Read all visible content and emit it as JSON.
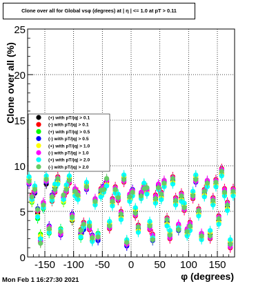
{
  "chart_data": {
    "type": "scatter",
    "title": "Clone  over all for Global vsφ (degrees) at | η | <= 1.0 at pT > 0.11",
    "xlabel": "φ (degrees)",
    "ylabel": "Clone  over all (%)",
    "xlim": [
      -180,
      180
    ],
    "ylim": [
      0,
      25
    ],
    "x_ticks": [
      "-150",
      "-100",
      "-50",
      "0",
      "50",
      "100",
      "150"
    ],
    "y_ticks": [
      "0",
      "5",
      "10",
      "15",
      "20",
      "25"
    ],
    "grid": true,
    "legend_position": "left",
    "timestamp": "Mon Feb  1 16:27:30 2021",
    "series": [
      {
        "name": "(+) with pT/|q| > 0.1",
        "color": "#000000",
        "marker": "circle",
        "values": [
          8.5,
          6.2,
          7.0,
          4.8,
          2.1,
          5.5,
          8.0,
          3.0,
          6.5,
          7.6,
          8.3,
          2.6,
          6.2,
          7.5,
          8.6,
          4.0,
          7.1,
          6.7,
          2.5,
          3.2,
          7.8,
          3.5,
          1.8,
          6.0,
          2.0,
          7.0,
          7.5,
          8.2,
          3.5,
          6.0,
          7.3,
          6.6,
          4.5,
          8.7,
          1.5,
          6.5,
          7.0,
          5.0,
          3.0,
          6.8,
          7.8,
          7.2,
          3.5,
          2.0,
          6.3,
          7.7,
          6.6,
          8.0,
          3.8,
          2.5,
          8.3,
          6.0,
          3.1,
          6.5,
          5.5,
          2.7,
          3.3,
          6.8,
          8.6,
          4.8,
          2.2,
          6.9,
          8.0,
          2.5,
          6.0,
          8.0,
          4.0,
          9.2,
          7.0,
          5.5,
          1.5,
          7.0
        ]
      },
      {
        "name": "(-) with pT/|q| > 0.1",
        "color": "#ff0000",
        "marker": "circle",
        "values": [
          8.2,
          6.8,
          7.3,
          5.0,
          1.6,
          5.9,
          8.4,
          3.2,
          6.1,
          7.1,
          8.8,
          2.7,
          6.7,
          7.1,
          8.1,
          4.5,
          7.4,
          7.1,
          3.0,
          3.8,
          7.6,
          3.0,
          2.2,
          6.3,
          2.3,
          7.5,
          7.6,
          8.3,
          3.1,
          6.4,
          7.7,
          6.2,
          5.0,
          8.2,
          1.3,
          6.8,
          7.2,
          4.5,
          3.5,
          6.9,
          7.9,
          7.3,
          3.0,
          2.5,
          6.8,
          7.8,
          7.1,
          8.3,
          4.3,
          2.0,
          8.8,
          6.5,
          3.5,
          7.0,
          5.1,
          3.0,
          3.8,
          6.4,
          8.4,
          5.3,
          2.5,
          7.4,
          8.2,
          2.0,
          6.5,
          8.5,
          4.5,
          9.7,
          7.5,
          6.0,
          1.0,
          7.5
        ]
      },
      {
        "name": "(+) with pT/|q| > 0.5",
        "color": "#00ff00",
        "marker": "circle",
        "values": [
          8.7,
          6.0,
          7.6,
          4.2,
          2.5,
          5.3,
          8.6,
          2.6,
          6.3,
          7.9,
          8.1,
          3.1,
          6.0,
          7.8,
          8.8,
          4.2,
          6.8,
          6.4,
          2.1,
          3.5,
          8.0,
          3.7,
          1.9,
          5.8,
          2.6,
          6.7,
          7.2,
          7.9,
          3.8,
          5.7,
          7.1,
          6.8,
          4.2,
          8.9,
          1.8,
          6.2,
          6.8,
          5.3,
          2.8,
          6.5,
          8.0,
          7.0,
          3.8,
          2.3,
          6.0,
          7.5,
          6.4,
          7.8,
          3.5,
          2.8,
          8.1,
          5.8,
          3.4,
          6.2,
          5.8,
          2.4,
          3.0,
          7.1,
          8.9,
          4.6,
          2.0,
          6.7,
          7.8,
          2.8,
          5.8,
          7.8,
          3.7,
          9.0,
          6.8,
          5.2,
          1.8,
          6.8
        ]
      },
      {
        "name": "(-) with pT/|q| > 0.5",
        "color": "#0000ff",
        "marker": "circle",
        "values": [
          8.0,
          6.5,
          7.1,
          5.3,
          1.8,
          5.8,
          8.2,
          3.4,
          6.8,
          7.3,
          8.5,
          2.4,
          6.5,
          7.3,
          8.3,
          4.7,
          7.3,
          6.9,
          2.7,
          3.0,
          7.4,
          3.3,
          2.4,
          6.2,
          1.8,
          7.2,
          7.8,
          8.5,
          3.3,
          6.2,
          7.5,
          6.4,
          4.8,
          8.4,
          1.2,
          6.7,
          7.4,
          4.7,
          3.2,
          7.0,
          7.6,
          7.5,
          3.3,
          1.8,
          6.5,
          7.9,
          6.8,
          8.2,
          4.0,
          2.3,
          8.5,
          6.3,
          2.9,
          6.8,
          5.3,
          2.9,
          3.5,
          6.6,
          8.2,
          5.0,
          2.4,
          7.1,
          8.3,
          2.2,
          6.3,
          8.3,
          4.3,
          9.5,
          7.2,
          5.8,
          1.3,
          7.3
        ]
      },
      {
        "name": "(+) with pT/|q| > 1.0",
        "color": "#ffff00",
        "marker": "circle",
        "values": [
          8.6,
          6.1,
          7.5,
          4.5,
          2.3,
          5.6,
          8.7,
          2.8,
          6.4,
          7.8,
          8.2,
          2.9,
          6.1,
          7.7,
          8.7,
          4.1,
          6.9,
          6.5,
          2.3,
          3.4,
          7.9,
          3.6,
          2.0,
          5.9,
          2.4,
          6.8,
          7.3,
          8.0,
          3.7,
          5.8,
          7.2,
          6.7,
          4.3,
          8.8,
          1.7,
          6.3,
          6.9,
          5.2,
          2.9,
          6.6,
          7.9,
          7.1,
          3.7,
          2.2,
          6.1,
          7.6,
          6.5,
          7.9,
          3.6,
          2.7,
          8.2,
          5.9,
          3.3,
          6.3,
          5.7,
          2.5,
          3.1,
          7.0,
          8.8,
          4.7,
          2.1,
          6.8,
          7.9,
          2.7,
          5.9,
          7.9,
          3.8,
          9.1,
          6.9,
          5.3,
          1.7,
          6.9
        ]
      },
      {
        "name": "(-) with pT/|q| > 1.0",
        "color": "#ff00ff",
        "marker": "circle",
        "values": [
          8.1,
          6.7,
          7.2,
          5.1,
          1.7,
          6.0,
          8.3,
          3.3,
          6.7,
          7.2,
          8.7,
          2.5,
          6.6,
          7.2,
          8.2,
          4.6,
          7.5,
          7.0,
          2.8,
          3.7,
          7.5,
          3.1,
          2.3,
          6.4,
          2.1,
          7.4,
          7.7,
          8.4,
          3.2,
          6.3,
          7.6,
          6.3,
          4.9,
          8.3,
          1.4,
          6.9,
          7.3,
          4.6,
          3.4,
          7.1,
          7.7,
          7.4,
          3.1,
          2.4,
          6.7,
          8.0,
          7.0,
          8.4,
          4.2,
          2.1,
          8.7,
          6.4,
          3.6,
          6.9,
          5.2,
          3.1,
          3.7,
          6.5,
          8.3,
          5.2,
          2.6,
          7.3,
          8.4,
          2.1,
          6.4,
          8.4,
          4.4,
          9.6,
          7.4,
          5.9,
          1.1,
          7.4
        ]
      },
      {
        "name": "(+) with pT/|q| > 2.0",
        "color": "#00ffff",
        "marker": "circle",
        "values": [
          8.8,
          6.3,
          7.8,
          4.4,
          2.0,
          5.4,
          8.9,
          2.7,
          6.2,
          8.0,
          8.0,
          3.0,
          6.3,
          7.9,
          8.9,
          4.3,
          6.7,
          6.3,
          2.2,
          3.3,
          8.2,
          3.8,
          1.7,
          5.7,
          2.5,
          6.6,
          7.1,
          7.8,
          3.9,
          5.6,
          7.0,
          6.9,
          4.1,
          9.0,
          1.9,
          6.1,
          6.7,
          5.4,
          2.7,
          6.4,
          8.1,
          6.9,
          3.9,
          2.1,
          5.9,
          7.4,
          6.3,
          7.7,
          3.4,
          2.9,
          8.0,
          5.7,
          3.2,
          6.1,
          5.9,
          2.3,
          2.9,
          7.2,
          9.0,
          4.5,
          1.9,
          6.6,
          7.7,
          2.9,
          5.7,
          7.7,
          3.6,
          8.9,
          6.7,
          5.1,
          1.9,
          6.7
        ]
      },
      {
        "name": "(-) with pT/|q| > 2.0",
        "color": "#66cc66",
        "marker": "circle",
        "values": [
          8.3,
          6.6,
          7.4,
          5.2,
          1.5,
          5.7,
          8.5,
          3.1,
          6.6,
          7.4,
          8.6,
          2.8,
          6.8,
          7.4,
          8.4,
          4.4,
          7.2,
          6.8,
          2.9,
          3.6,
          7.7,
          3.4,
          2.1,
          6.1,
          2.2,
          7.3,
          7.4,
          8.6,
          3.4,
          6.1,
          7.4,
          6.5,
          4.7,
          8.5,
          1.6,
          6.6,
          7.1,
          4.8,
          3.3,
          6.7,
          7.5,
          7.6,
          3.4,
          1.9,
          6.4,
          7.6,
          6.9,
          8.1,
          4.1,
          2.4,
          8.6,
          6.2,
          3.0,
          6.7,
          5.4,
          2.8,
          3.4,
          6.7,
          8.5,
          5.1,
          2.3,
          7.2,
          8.1,
          2.3,
          6.2,
          8.2,
          4.2,
          9.4,
          7.1,
          5.7,
          1.4,
          7.2
        ]
      }
    ]
  }
}
